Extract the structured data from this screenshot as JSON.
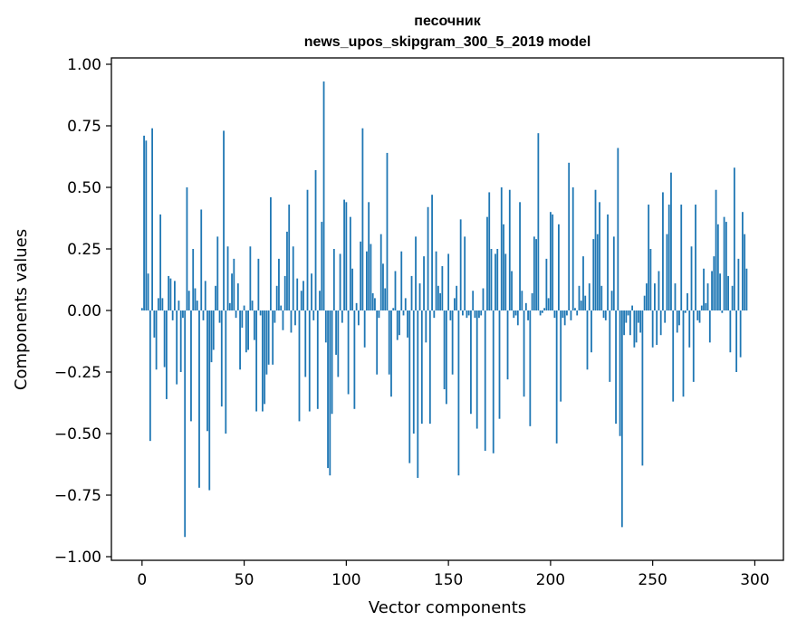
{
  "chart_data": {
    "type": "bar",
    "title_line1": "песочник",
    "title_line2": "news_upos_skipgram_300_5_2019 model",
    "xlabel": "Vector components",
    "ylabel": "Components values",
    "xlim": [
      -15,
      314
    ],
    "ylim": [
      -1.0,
      1.0
    ],
    "xticks": [
      0,
      50,
      100,
      150,
      200,
      250,
      300
    ],
    "xtick_labels": [
      "0",
      "50",
      "100",
      "150",
      "200",
      "250",
      "300"
    ],
    "yticks": [
      1.0,
      0.75,
      0.5,
      0.25,
      0.0,
      -0.25,
      -0.5,
      -0.75,
      -1.0
    ],
    "ytick_labels": [
      "1.00",
      "0.75",
      "0.50",
      "0.25",
      "0.00",
      "−0.25",
      "−0.50",
      "−0.75",
      "−1.00"
    ],
    "bar_color": "#1f77b4",
    "values": [
      0.01,
      0.71,
      0.69,
      0.15,
      -0.53,
      0.74,
      -0.11,
      -0.24,
      0.05,
      0.39,
      0.05,
      -0.23,
      -0.36,
      0.14,
      0.13,
      -0.04,
      0.12,
      -0.3,
      0.04,
      -0.25,
      -0.03,
      -0.92,
      0.5,
      0.08,
      -0.45,
      0.25,
      0.09,
      0.04,
      -0.72,
      0.41,
      -0.04,
      0.12,
      -0.49,
      -0.73,
      -0.21,
      -0.16,
      0.1,
      0.3,
      -0.05,
      -0.39,
      0.73,
      -0.5,
      0.26,
      0.03,
      0.15,
      0.21,
      -0.03,
      0.11,
      -0.24,
      -0.07,
      0.02,
      -0.17,
      -0.16,
      0.26,
      0.04,
      -0.12,
      -0.41,
      0.21,
      -0.02,
      -0.41,
      -0.38,
      -0.26,
      -0.22,
      0.46,
      -0.22,
      -0.05,
      0.1,
      0.21,
      0.02,
      -0.08,
      0.14,
      0.32,
      0.43,
      -0.09,
      0.26,
      -0.06,
      0.13,
      -0.45,
      0.08,
      0.12,
      -0.27,
      0.49,
      -0.41,
      0.15,
      -0.04,
      0.57,
      -0.4,
      0.08,
      0.36,
      0.93,
      -0.13,
      -0.64,
      -0.67,
      -0.42,
      0.25,
      -0.18,
      -0.27,
      0.23,
      -0.05,
      0.45,
      0.44,
      -0.34,
      0.38,
      0.17,
      -0.4,
      0.03,
      -0.06,
      0.28,
      0.74,
      -0.15,
      0.24,
      0.44,
      0.27,
      0.07,
      0.05,
      -0.26,
      -0.03,
      0.31,
      0.19,
      0.09,
      0.64,
      -0.26,
      -0.35,
      0.01,
      0.16,
      -0.12,
      -0.1,
      0.24,
      -0.02,
      0.05,
      -0.11,
      -0.62,
      0.14,
      -0.5,
      0.3,
      -0.68,
      0.11,
      -0.46,
      0.22,
      -0.13,
      0.42,
      -0.46,
      0.47,
      -0.03,
      0.24,
      0.1,
      0.07,
      0.18,
      -0.32,
      -0.38,
      0.23,
      -0.04,
      -0.26,
      0.05,
      0.1,
      -0.67,
      0.37,
      -0.02,
      0.3,
      -0.03,
      -0.02,
      -0.42,
      0.08,
      -0.03,
      -0.48,
      -0.03,
      -0.02,
      0.09,
      -0.57,
      0.38,
      0.48,
      0.25,
      -0.58,
      0.23,
      0.25,
      -0.44,
      0.5,
      0.35,
      0.23,
      -0.28,
      0.49,
      0.16,
      -0.03,
      -0.02,
      -0.06,
      0.44,
      0.08,
      -0.35,
      0.03,
      -0.04,
      -0.47,
      0.07,
      0.3,
      0.29,
      0.72,
      -0.02,
      -0.01,
      0.01,
      0.21,
      0.05,
      0.4,
      0.39,
      -0.03,
      -0.54,
      0.35,
      -0.37,
      -0.03,
      -0.06,
      -0.02,
      0.6,
      -0.04,
      0.5,
      0.01,
      -0.02,
      0.1,
      0.04,
      0.22,
      0.06,
      -0.24,
      0.11,
      -0.17,
      0.29,
      0.49,
      0.31,
      0.44,
      0.1,
      -0.03,
      -0.04,
      0.39,
      -0.29,
      0.08,
      0.3,
      -0.46,
      0.66,
      -0.51,
      -0.88,
      -0.1,
      -0.05,
      -0.02,
      -0.1,
      0.02,
      -0.15,
      -0.13,
      -0.05,
      -0.09,
      -0.63,
      0.06,
      0.11,
      0.43,
      0.25,
      -0.15,
      0.11,
      -0.14,
      0.16,
      -0.1,
      0.48,
      -0.05,
      0.31,
      0.43,
      0.56,
      -0.37,
      0.11,
      -0.09,
      -0.06,
      0.43,
      -0.35,
      -0.01,
      0.07,
      -0.15,
      0.26,
      -0.29,
      0.43,
      -0.04,
      -0.05,
      0.02,
      0.17,
      0.03,
      0.11,
      -0.13,
      0.16,
      0.22,
      0.49,
      0.35,
      0.15,
      -0.01,
      0.38,
      0.36,
      0.14,
      -0.17,
      0.1,
      0.58,
      -0.25,
      0.21,
      -0.19,
      0.4,
      0.31,
      0.17
    ]
  }
}
